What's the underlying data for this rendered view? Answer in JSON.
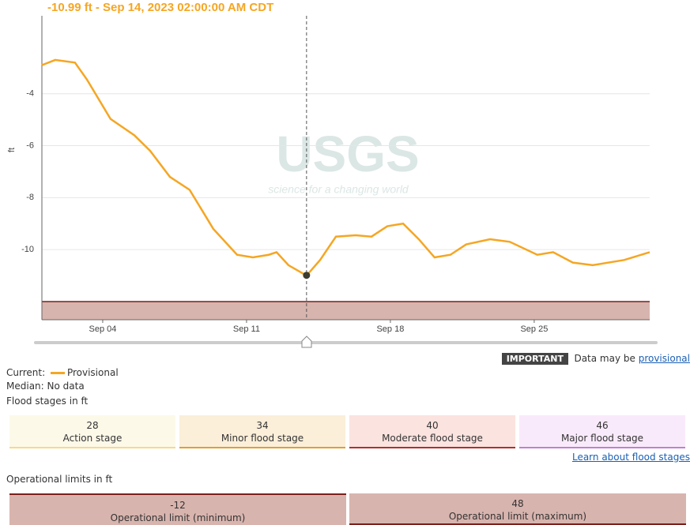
{
  "chart_data": {
    "type": "line",
    "title": "-10.99 ft - Sep 14, 2023 02:00:00 AM CDT",
    "y_label": "ft",
    "watermark": "USGS",
    "watermark_tagline": "science for a changing world",
    "x": [
      1.04,
      1.69,
      2.65,
      3.23,
      4.38,
      5.54,
      6.31,
      7.27,
      8.23,
      9.38,
      10.54,
      11.31,
      12.08,
      12.46,
      13.04,
      13.92,
      14.58,
      15.35,
      16.31,
      17.08,
      17.85,
      18.62,
      19.38,
      20.15,
      20.92,
      21.69,
      22.85,
      23.81,
      25.15,
      25.92,
      26.88,
      27.85,
      29.38,
      30.62
    ],
    "series": [
      {
        "name": "Provisional",
        "color": "#f5a623",
        "values": [
          -2.9,
          -2.7,
          -2.8,
          -3.45,
          -4.97,
          -5.6,
          -6.2,
          -7.2,
          -7.7,
          -9.2,
          -10.2,
          -10.3,
          -10.2,
          -10.1,
          -10.6,
          -11.0,
          -10.4,
          -9.5,
          -9.45,
          -9.5,
          -9.1,
          -9.0,
          -9.6,
          -10.3,
          -10.2,
          -9.8,
          -9.6,
          -9.7,
          -10.2,
          -10.1,
          -10.5,
          -10.6,
          -10.4,
          -10.1
        ]
      }
    ],
    "cursor_x": 13.92,
    "cursor_value": -10.99,
    "operational_min_band": -12,
    "xlim": [
      1.04,
      30.62
    ],
    "ylim": [
      -12.7,
      -1
    ],
    "xticks": [
      {
        "value": 4,
        "label": "Sep 04"
      },
      {
        "value": 11,
        "label": "Sep 11"
      },
      {
        "value": 18,
        "label": "Sep 18"
      },
      {
        "value": 25,
        "label": "Sep 25"
      }
    ],
    "yticks": [
      -4,
      -6,
      -8,
      -10
    ],
    "grid": true
  },
  "notice": {
    "badge": "IMPORTANT",
    "text": "Data may be ",
    "link": "provisional"
  },
  "legend": {
    "current_label": "Current:",
    "current_series": "Provisional",
    "median_label": "Median:",
    "median_value": "No data"
  },
  "flood_stages": {
    "title": "Flood stages in ft",
    "items": [
      {
        "value": 28,
        "label": "Action stage"
      },
      {
        "value": 34,
        "label": "Minor flood stage"
      },
      {
        "value": 40,
        "label": "Moderate flood stage"
      },
      {
        "value": 46,
        "label": "Major flood stage"
      }
    ],
    "link": "Learn about flood stages"
  },
  "operational_limits": {
    "title": "Operational limits in ft",
    "items": [
      {
        "value": -12,
        "label": "Operational limit (minimum)"
      },
      {
        "value": 48,
        "label": "Operational limit (maximum)"
      }
    ]
  }
}
